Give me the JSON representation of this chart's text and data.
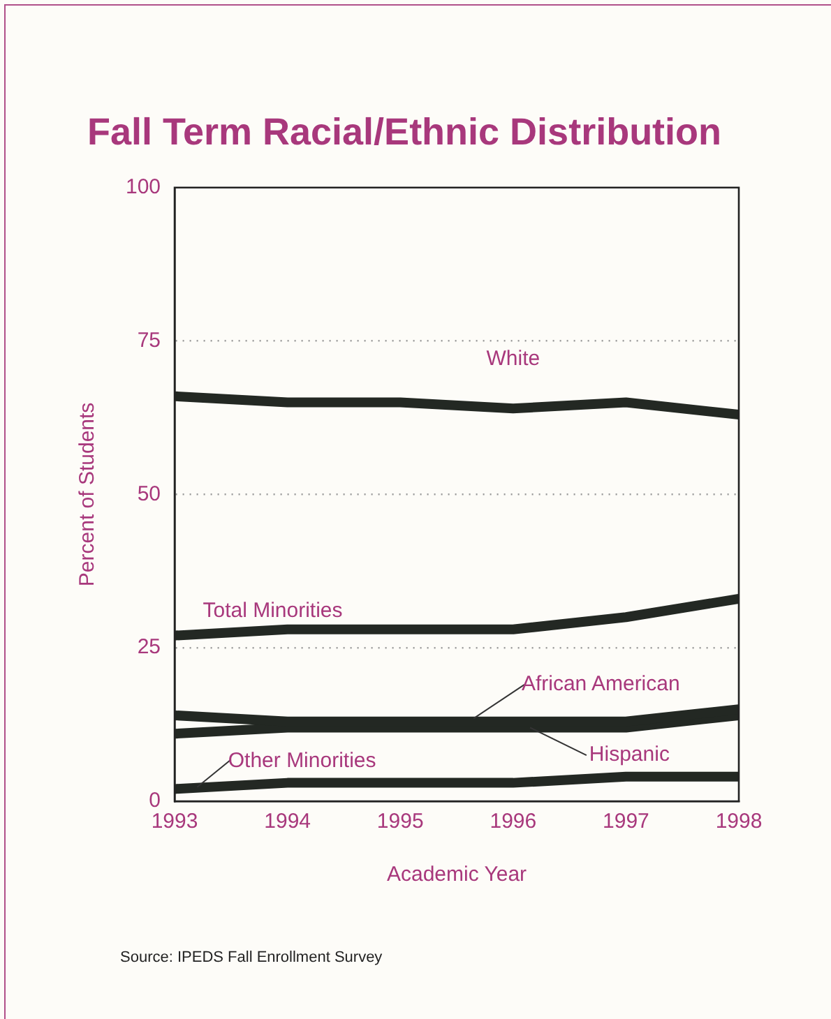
{
  "chart_data": {
    "type": "line",
    "title": "Fall Term Racial/Ethnic Distribution",
    "xlabel": "Academic Year",
    "ylabel": "Percent of Students",
    "x": [
      1993,
      1994,
      1995,
      1996,
      1997,
      1998
    ],
    "series": [
      {
        "name": "White",
        "color": "#232823",
        "values": [
          66,
          65,
          65,
          64,
          65,
          63
        ]
      },
      {
        "name": "Total Minorities",
        "color": "#232823",
        "values": [
          27,
          28,
          28,
          28,
          30,
          33
        ]
      },
      {
        "name": "African American",
        "color": "#232823",
        "values": [
          14,
          13,
          13,
          13,
          13,
          15
        ]
      },
      {
        "name": "Hispanic",
        "color": "#232823",
        "values": [
          11,
          12,
          12,
          12,
          12,
          14
        ]
      },
      {
        "name": "Other Minorities",
        "color": "#232823",
        "values": [
          2,
          3,
          3,
          3,
          4,
          4
        ]
      }
    ],
    "xlim": [
      1993,
      1998
    ],
    "xticks": [
      1993,
      1994,
      1995,
      1996,
      1997,
      1998
    ],
    "ylim": [
      0,
      100
    ],
    "yticks": [
      0,
      25,
      50,
      75,
      100
    ],
    "grid": "y",
    "legend": "bottom left",
    "marker": "none",
    "line_style": "solid",
    "annotations": [
      "Source: IPEDS Fall Enrollment Survey"
    ]
  }
}
